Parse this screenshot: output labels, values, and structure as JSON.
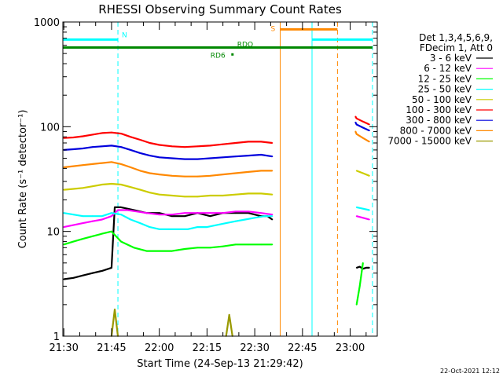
{
  "chart_data": {
    "type": "line",
    "title": "RHESSI Observing Summary Count Rates",
    "xlabel": "Start Time (24-Sep-13 21:29:42)",
    "ylabel": "Count Rate (s⁻¹ detector⁻¹)",
    "y_scale": "log",
    "ylim": [
      1,
      1000
    ],
    "xlim": [
      "21:29:42",
      "23:08:30"
    ],
    "x_ticks": [
      "21:30",
      "21:45",
      "22:00",
      "22:15",
      "22:30",
      "22:45",
      "23:00"
    ],
    "y_ticks": [
      "1",
      "10",
      "100",
      "1000"
    ],
    "grid": false,
    "legend_title": [
      "Det 1,3,4,5,6,9,",
      "FDecim 1, Att 0"
    ],
    "legend_position": "right",
    "footer": "22-Oct-2021 12:12",
    "series": [
      {
        "name": "3 - 6 keV",
        "color": "#000000",
        "segments": [
          {
            "x": [
              "21:30",
              "21:33",
              "21:36",
              "21:39",
              "21:42",
              "21:45",
              "21:46",
              "21:48",
              "21:52",
              "21:56",
              "22:00",
              "22:04",
              "22:08",
              "22:12",
              "22:16",
              "22:20",
              "22:24",
              "22:28",
              "22:32",
              "22:34",
              "22:35:30"
            ],
            "y": [
              3.5,
              3.6,
              3.8,
              4.0,
              4.2,
              4.5,
              17,
              17,
              16,
              15,
              15,
              14,
              14,
              15,
              14,
              15,
              15,
              15,
              14,
              14,
              13
            ]
          },
          {
            "x": [
              "23:02",
              "23:03",
              "23:04",
              "23:05",
              "23:06"
            ],
            "y": [
              4.5,
              4.6,
              4.4,
              4.5,
              4.5
            ]
          }
        ]
      },
      {
        "name": "6 - 12 keV",
        "color": "#ff00ff",
        "segments": [
          {
            "x": [
              "21:30",
              "21:33",
              "21:36",
              "21:39",
              "21:42",
              "21:45",
              "21:47",
              "21:50",
              "21:53",
              "21:56",
              "22:00",
              "22:04",
              "22:08",
              "22:12",
              "22:16",
              "22:20",
              "22:24",
              "22:28",
              "22:32",
              "22:35:30"
            ],
            "y": [
              11,
              11.5,
              12,
              12.5,
              13,
              14,
              16,
              16,
              15.5,
              15,
              14.5,
              14.5,
              15,
              15,
              15,
              15,
              15.5,
              15.5,
              15,
              14.5
            ]
          },
          {
            "x": [
              "23:02",
              "23:04",
              "23:06"
            ],
            "y": [
              14,
              13.5,
              13
            ]
          }
        ]
      },
      {
        "name": "12 - 25 keV",
        "color": "#00ff00",
        "segments": [
          {
            "x": [
              "21:30",
              "21:33",
              "21:36",
              "21:39",
              "21:42",
              "21:45",
              "21:48",
              "21:52",
              "21:56",
              "22:00",
              "22:04",
              "22:08",
              "22:12",
              "22:16",
              "22:20",
              "22:24",
              "22:28",
              "22:32",
              "22:35:30"
            ],
            "y": [
              7.5,
              8,
              8.5,
              9,
              9.5,
              10,
              8,
              7,
              6.5,
              6.5,
              6.5,
              6.8,
              7,
              7,
              7.2,
              7.5,
              7.5,
              7.5,
              7.5
            ]
          },
          {
            "x": [
              "23:02",
              "23:03",
              "23:04"
            ],
            "y": [
              2,
              3,
              5
            ]
          }
        ]
      },
      {
        "name": "25 - 50 keV",
        "color": "#00ffff",
        "segments": [
          {
            "x": [
              "21:30",
              "21:33",
              "21:36",
              "21:39",
              "21:42",
              "21:45",
              "21:48",
              "21:51",
              "21:54",
              "21:57",
              "22:00",
              "22:03",
              "22:06",
              "22:09",
              "22:12",
              "22:15",
              "22:18",
              "22:21",
              "22:24",
              "22:27",
              "22:30",
              "22:33",
              "22:35:30"
            ],
            "y": [
              15,
              14.5,
              14,
              14,
              14,
              15,
              14.5,
              13,
              12,
              11,
              10.5,
              10.5,
              10.5,
              10.5,
              11,
              11,
              11.5,
              12,
              12.5,
              13,
              13.5,
              14,
              14
            ]
          },
          {
            "x": [
              "23:02",
              "23:04",
              "23:06"
            ],
            "y": [
              17,
              16.5,
              16
            ]
          }
        ]
      },
      {
        "name": "50 - 100 keV",
        "color": "#cccc00",
        "segments": [
          {
            "x": [
              "21:30",
              "21:33",
              "21:36",
              "21:39",
              "21:42",
              "21:45",
              "21:48",
              "21:51",
              "21:54",
              "21:57",
              "22:00",
              "22:04",
              "22:08",
              "22:12",
              "22:16",
              "22:20",
              "22:24",
              "22:28",
              "22:32",
              "22:35:30"
            ],
            "y": [
              25,
              25.5,
              26,
              27,
              28,
              28.5,
              28,
              26.5,
              25,
              23.5,
              22.5,
              22,
              21.5,
              21.5,
              22,
              22,
              22.5,
              23,
              23,
              22.5
            ]
          },
          {
            "x": [
              "23:02",
              "23:04",
              "23:06"
            ],
            "y": [
              38,
              36,
              34
            ]
          }
        ]
      },
      {
        "name": "100 - 300 keV",
        "color": "#ff0000",
        "segments": [
          {
            "x": [
              "21:30",
              "21:33",
              "21:36",
              "21:39",
              "21:42",
              "21:45",
              "21:48",
              "21:51",
              "21:54",
              "21:57",
              "22:00",
              "22:04",
              "22:08",
              "22:12",
              "22:16",
              "22:20",
              "22:24",
              "22:28",
              "22:32",
              "22:35:30"
            ],
            "y": [
              78,
              79,
              81,
              84,
              87,
              88,
              86,
              80,
              75,
              70,
              67,
              65,
              64,
              65,
              66,
              68,
              70,
              72,
              72,
              70
            ]
          },
          {
            "x": [
              "23:01:40",
              "23:02",
              "23:04",
              "23:06"
            ],
            "y": [
              125,
              120,
              112,
              105
            ]
          }
        ]
      },
      {
        "name": "300 - 800 keV",
        "color": "#0000dd",
        "segments": [
          {
            "x": [
              "21:30",
              "21:33",
              "21:36",
              "21:39",
              "21:42",
              "21:45",
              "21:48",
              "21:51",
              "21:54",
              "21:57",
              "22:00",
              "22:04",
              "22:08",
              "22:12",
              "22:16",
              "22:20",
              "22:24",
              "22:28",
              "22:32",
              "22:35:30"
            ],
            "y": [
              60,
              61,
              62,
              64,
              65,
              66,
              64,
              60,
              56,
              53,
              51,
              50,
              49,
              49,
              50,
              51,
              52,
              53,
              54,
              52
            ]
          },
          {
            "x": [
              "23:01:40",
              "23:02",
              "23:04",
              "23:06"
            ],
            "y": [
              110,
              105,
              98,
              92
            ]
          }
        ]
      },
      {
        "name": "800 - 7000 keV",
        "color": "#ff8800",
        "segments": [
          {
            "x": [
              "21:30",
              "21:33",
              "21:36",
              "21:39",
              "21:42",
              "21:45",
              "21:48",
              "21:51",
              "21:54",
              "21:57",
              "22:00",
              "22:04",
              "22:08",
              "22:12",
              "22:16",
              "22:20",
              "22:24",
              "22:28",
              "22:32",
              "22:35:30"
            ],
            "y": [
              41,
              42,
              43,
              44,
              45,
              46,
              44,
              41,
              38,
              36,
              35,
              34,
              33.5,
              33.5,
              34,
              35,
              36,
              37,
              38,
              38
            ]
          },
          {
            "x": [
              "23:01:40",
              "23:02",
              "23:04",
              "23:06"
            ],
            "y": [
              90,
              85,
              78,
              72
            ]
          }
        ]
      },
      {
        "name": "7000 - 15000 keV",
        "color": "#999900",
        "segments": [
          {
            "x": [
              "21:45",
              "21:46",
              "21:47"
            ],
            "y": [
              1.0,
              1.8,
              1.0
            ]
          },
          {
            "x": [
              "22:21",
              "22:22",
              "22:23"
            ],
            "y": [
              1.0,
              1.6,
              1.0
            ]
          }
        ]
      }
    ],
    "annotations": [
      {
        "label": "N",
        "color": "#00ffff",
        "x_start": "21:29:42",
        "x_end": "21:47",
        "y": 680
      },
      {
        "label": "S",
        "color": "#ff8800",
        "x_start": "22:38",
        "x_end": "22:56",
        "y": 850
      },
      {
        "label": "",
        "color": "#00ffff",
        "x_start": "22:48",
        "x_end": "23:07",
        "y": 680
      },
      {
        "label": "RDO",
        "color": "#008800",
        "x_start": "21:29:42",
        "x_end": "23:07",
        "y": 570
      },
      {
        "label": "RD6",
        "color": "#008800",
        "x_start": "22:23",
        "x_end": "22:23",
        "y": 490
      }
    ],
    "vertical_markers": [
      {
        "x": "21:29:42",
        "color": "#00ffff",
        "style": "solid"
      },
      {
        "x": "21:47",
        "color": "#00ffff",
        "style": "dashed"
      },
      {
        "x": "22:38",
        "color": "#ff8800",
        "style": "solid"
      },
      {
        "x": "22:48",
        "color": "#00ffff",
        "style": "solid"
      },
      {
        "x": "22:56",
        "color": "#ff8800",
        "style": "dashed"
      },
      {
        "x": "23:07",
        "color": "#00ffff",
        "style": "dashed"
      }
    ]
  }
}
